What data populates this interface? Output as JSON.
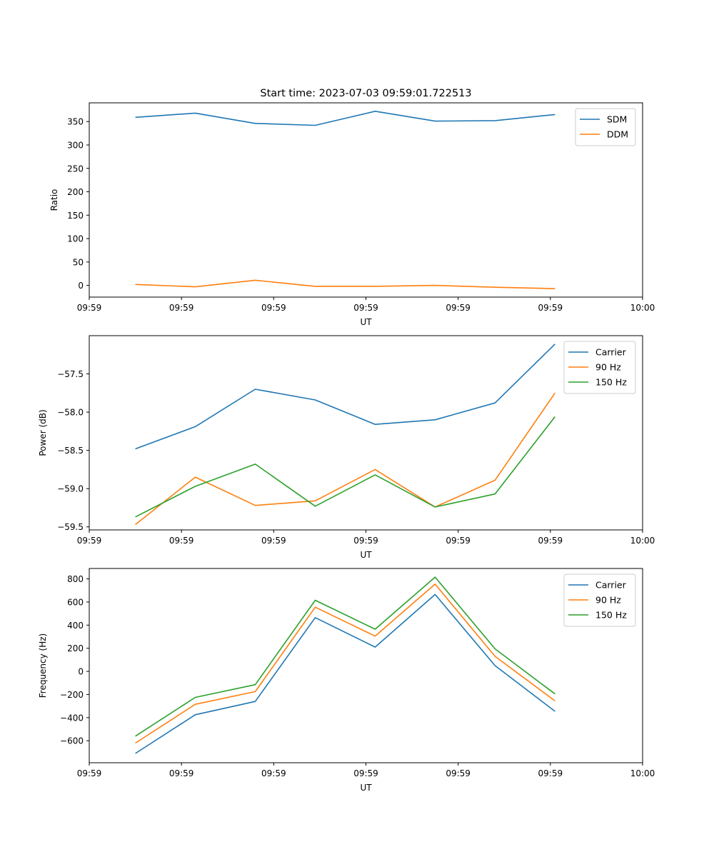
{
  "chart_data": [
    {
      "type": "line",
      "title": "Start time: 2023-07-03 09:59:01.722513",
      "xlabel": "UT",
      "ylabel": "Ratio",
      "xlim": [
        0,
        6
      ],
      "ylim": [
        -25,
        390
      ],
      "x_ticks": [
        0,
        1,
        2,
        3,
        4,
        5,
        6
      ],
      "x_tick_labels": [
        "09:59",
        "09:59",
        "09:59",
        "09:59",
        "09:59",
        "09:59",
        "10:00"
      ],
      "y_ticks": [
        0,
        50,
        100,
        150,
        200,
        250,
        300,
        350
      ],
      "y_tick_labels": [
        "0",
        "50",
        "100",
        "150",
        "200",
        "250",
        "300",
        "350"
      ],
      "x": [
        0.5,
        1.15,
        1.8,
        2.45,
        3.1,
        3.75,
        4.4,
        5.05
      ],
      "series": [
        {
          "name": "SDM",
          "color": "#1f77b4",
          "values": [
            359,
            368,
            346,
            342,
            372,
            351,
            352,
            365
          ]
        },
        {
          "name": "DDM",
          "color": "#ff7f0e",
          "values": [
            2,
            -3,
            11,
            -2,
            -2,
            0,
            -4,
            -7
          ]
        }
      ],
      "legend": "upper-right"
    },
    {
      "type": "line",
      "title": "",
      "xlabel": "UT",
      "ylabel": "Power (dB)",
      "xlim": [
        0,
        6
      ],
      "ylim": [
        -59.54,
        -57.0
      ],
      "x_ticks": [
        0,
        1,
        2,
        3,
        4,
        5,
        6
      ],
      "x_tick_labels": [
        "09:59",
        "09:59",
        "09:59",
        "09:59",
        "09:59",
        "09:59",
        "10:00"
      ],
      "y_ticks": [
        -59.5,
        -59.0,
        -58.5,
        -58.0,
        -57.5
      ],
      "y_tick_labels": [
        "−59.5",
        "−59.0",
        "−58.5",
        "−58.0",
        "−57.5"
      ],
      "x": [
        0.5,
        1.15,
        1.8,
        2.45,
        3.1,
        3.75,
        4.4,
        5.05
      ],
      "series": [
        {
          "name": "Carrier",
          "color": "#1f77b4",
          "values": [
            -58.48,
            -58.19,
            -57.7,
            -57.84,
            -58.16,
            -58.1,
            -57.88,
            -57.11
          ]
        },
        {
          "name": "90 Hz",
          "color": "#ff7f0e",
          "values": [
            -59.47,
            -58.85,
            -59.22,
            -59.16,
            -58.75,
            -59.24,
            -58.89,
            -57.75
          ]
        },
        {
          "name": "150 Hz",
          "color": "#2ca02c",
          "values": [
            -59.37,
            -58.97,
            -58.68,
            -59.23,
            -58.82,
            -59.24,
            -59.07,
            -58.06
          ]
        }
      ],
      "legend": "upper-right"
    },
    {
      "type": "line",
      "title": "",
      "xlabel": "UT",
      "ylabel": "Frequency (Hz)",
      "xlim": [
        0,
        6
      ],
      "ylim": [
        -790,
        890
      ],
      "x_ticks": [
        0,
        1,
        2,
        3,
        4,
        5,
        6
      ],
      "x_tick_labels": [
        "09:59",
        "09:59",
        "09:59",
        "09:59",
        "09:59",
        "09:59",
        "10:00"
      ],
      "y_ticks": [
        -600,
        -400,
        -200,
        0,
        200,
        400,
        600,
        800
      ],
      "y_tick_labels": [
        "−600",
        "−400",
        "−200",
        "0",
        "200",
        "400",
        "600",
        "800"
      ],
      "x": [
        0.5,
        1.15,
        1.8,
        2.45,
        3.1,
        3.75,
        4.4,
        5.05
      ],
      "series": [
        {
          "name": "Carrier",
          "color": "#1f77b4",
          "values": [
            -710,
            -375,
            -260,
            465,
            210,
            665,
            50,
            -345
          ]
        },
        {
          "name": "90 Hz",
          "color": "#ff7f0e",
          "values": [
            -620,
            -285,
            -175,
            555,
            305,
            755,
            130,
            -255
          ]
        },
        {
          "name": "150 Hz",
          "color": "#2ca02c",
          "values": [
            -560,
            -225,
            -115,
            615,
            365,
            815,
            195,
            -195
          ]
        }
      ],
      "legend": "upper-right"
    }
  ]
}
